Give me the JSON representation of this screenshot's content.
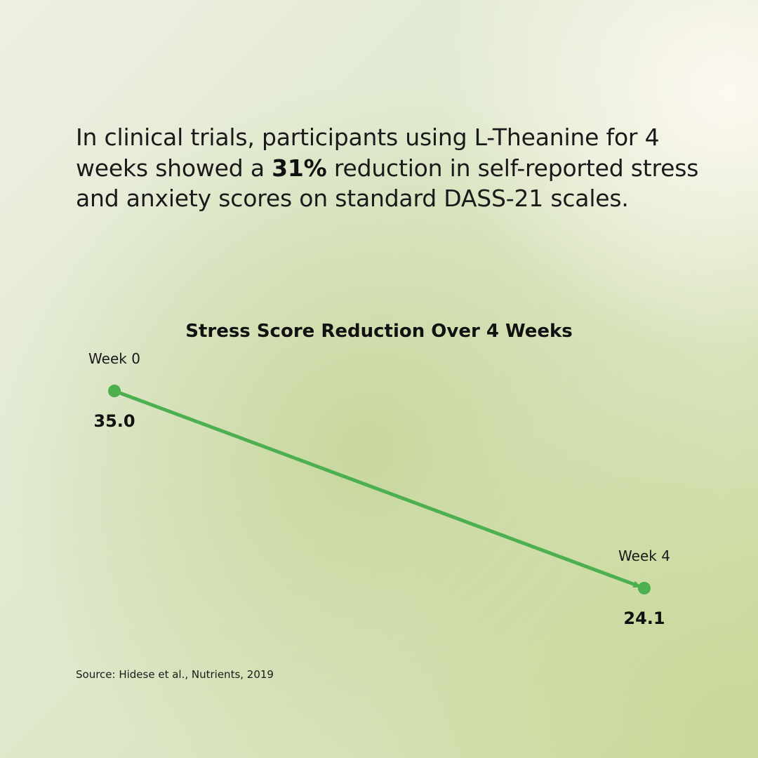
{
  "headline": {
    "before": "In clinical trials, participants using L-Theanine for 4 weeks showed a ",
    "highlight": "31%",
    "after": " reduction in self-reported stress and anxiety scores on standard DASS-21 scales."
  },
  "chart_data": {
    "type": "line",
    "title": "Stress Score Reduction Over 4 Weeks",
    "xlabel": "",
    "ylabel": "",
    "categories": [
      "Week 0",
      "Week 4"
    ],
    "x": [
      0,
      4
    ],
    "series": [
      {
        "values": [
          35.0,
          24.1
        ]
      }
    ],
    "data_labels": [
      "35.0",
      "24.1"
    ],
    "ylim": [
      24.1,
      35.0
    ],
    "grid": false,
    "legend": "none",
    "line_color": "#4caf50",
    "arrow": true
  },
  "source": "Source: Hidese et al., Nutrients, 2019"
}
